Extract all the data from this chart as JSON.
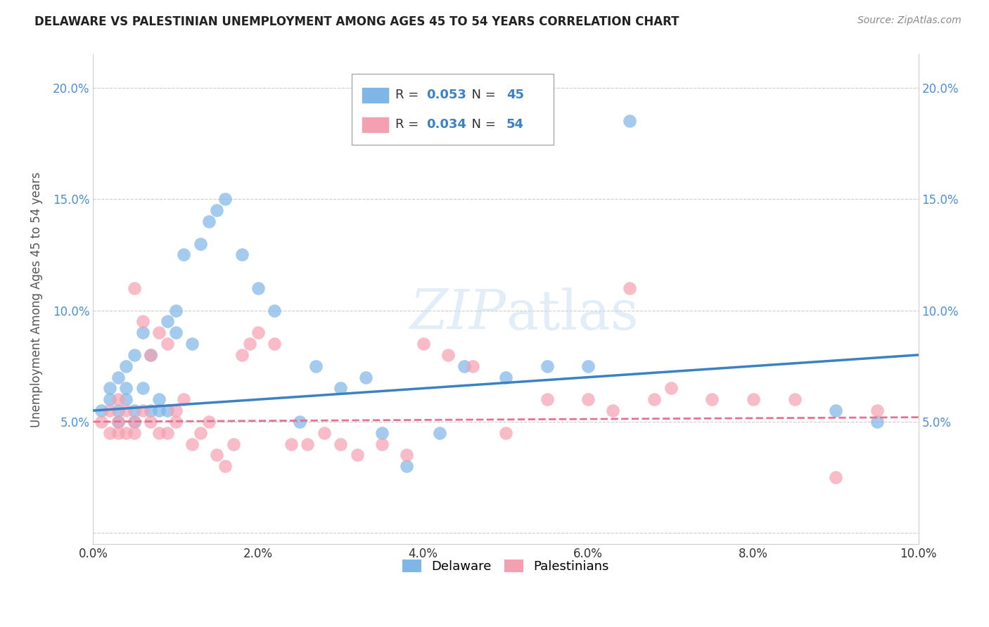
{
  "title": "DELAWARE VS PALESTINIAN UNEMPLOYMENT AMONG AGES 45 TO 54 YEARS CORRELATION CHART",
  "source": "Source: ZipAtlas.com",
  "ylabel": "Unemployment Among Ages 45 to 54 years",
  "xlim": [
    0,
    0.1
  ],
  "ylim": [
    -0.005,
    0.215
  ],
  "xtick_vals": [
    0.0,
    0.02,
    0.04,
    0.06,
    0.08,
    0.1
  ],
  "xtick_labels": [
    "0.0%",
    "2.0%",
    "4.0%",
    "6.0%",
    "8.0%",
    "10.0%"
  ],
  "ytick_vals": [
    0.0,
    0.05,
    0.1,
    0.15,
    0.2
  ],
  "ytick_labels": [
    "",
    "5.0%",
    "10.0%",
    "15.0%",
    "20.0%"
  ],
  "background_color": "#ffffff",
  "delaware_color": "#7EB6E8",
  "palestinian_color": "#F4A0B0",
  "trend_blue": "#3B82C4",
  "trend_pink": "#E87090",
  "delaware_R": 0.053,
  "delaware_N": 45,
  "palestinian_R": 0.034,
  "palestinian_N": 54,
  "delaware_x": [
    0.001,
    0.002,
    0.002,
    0.003,
    0.003,
    0.003,
    0.004,
    0.004,
    0.004,
    0.005,
    0.005,
    0.005,
    0.006,
    0.006,
    0.007,
    0.007,
    0.008,
    0.008,
    0.009,
    0.009,
    0.01,
    0.01,
    0.011,
    0.012,
    0.013,
    0.014,
    0.015,
    0.016,
    0.018,
    0.02,
    0.022,
    0.025,
    0.027,
    0.03,
    0.033,
    0.035,
    0.038,
    0.042,
    0.045,
    0.05,
    0.055,
    0.06,
    0.065,
    0.09,
    0.095
  ],
  "delaware_y": [
    0.055,
    0.06,
    0.065,
    0.05,
    0.055,
    0.07,
    0.06,
    0.065,
    0.075,
    0.05,
    0.055,
    0.08,
    0.065,
    0.09,
    0.055,
    0.08,
    0.055,
    0.06,
    0.055,
    0.095,
    0.1,
    0.09,
    0.125,
    0.085,
    0.13,
    0.14,
    0.145,
    0.15,
    0.125,
    0.11,
    0.1,
    0.05,
    0.075,
    0.065,
    0.07,
    0.045,
    0.03,
    0.045,
    0.075,
    0.07,
    0.075,
    0.075,
    0.185,
    0.055,
    0.05
  ],
  "palestinian_x": [
    0.001,
    0.002,
    0.002,
    0.003,
    0.003,
    0.003,
    0.004,
    0.004,
    0.005,
    0.005,
    0.005,
    0.006,
    0.006,
    0.007,
    0.007,
    0.008,
    0.008,
    0.009,
    0.009,
    0.01,
    0.01,
    0.011,
    0.012,
    0.013,
    0.014,
    0.015,
    0.016,
    0.017,
    0.018,
    0.019,
    0.02,
    0.022,
    0.024,
    0.026,
    0.028,
    0.03,
    0.032,
    0.035,
    0.038,
    0.04,
    0.043,
    0.046,
    0.05,
    0.055,
    0.06,
    0.063,
    0.065,
    0.068,
    0.07,
    0.075,
    0.08,
    0.085,
    0.09,
    0.095
  ],
  "palestinian_y": [
    0.05,
    0.045,
    0.055,
    0.045,
    0.05,
    0.06,
    0.045,
    0.055,
    0.045,
    0.05,
    0.11,
    0.055,
    0.095,
    0.05,
    0.08,
    0.045,
    0.09,
    0.045,
    0.085,
    0.05,
    0.055,
    0.06,
    0.04,
    0.045,
    0.05,
    0.035,
    0.03,
    0.04,
    0.08,
    0.085,
    0.09,
    0.085,
    0.04,
    0.04,
    0.045,
    0.04,
    0.035,
    0.04,
    0.035,
    0.085,
    0.08,
    0.075,
    0.045,
    0.06,
    0.06,
    0.055,
    0.11,
    0.06,
    0.065,
    0.06,
    0.06,
    0.06,
    0.025,
    0.055
  ]
}
